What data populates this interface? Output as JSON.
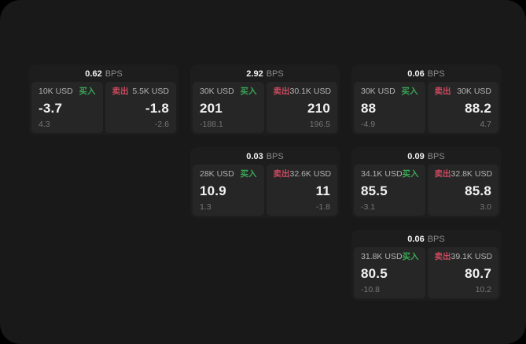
{
  "window": {
    "background": "#191919",
    "outer_background": "#000000"
  },
  "labels": {
    "buy": "买入",
    "sell": "卖出",
    "bps_unit": "BPS"
  },
  "colors": {
    "buy_green": "#3aa655",
    "sell_red": "#cb4a5e",
    "card_bg": "#1d1d1d",
    "panel_bg": "#262626",
    "primary_text": "#f2f2f2",
    "secondary_text": "#b3b3b3",
    "muted_text": "#767676"
  },
  "cards": [
    {
      "row": 1,
      "col": 1,
      "bps": "0.62",
      "buy": {
        "amount": "10K USD",
        "value": "-3.7",
        "sub": "4.3"
      },
      "sell": {
        "amount": "5.5K USD",
        "value": "-1.8",
        "sub": "-2.6"
      }
    },
    {
      "row": 1,
      "col": 2,
      "bps": "2.92",
      "buy": {
        "amount": "30K USD",
        "value": "201",
        "sub": "-188.1"
      },
      "sell": {
        "amount": "30.1K USD",
        "value": "210",
        "sub": "196.5"
      }
    },
    {
      "row": 1,
      "col": 3,
      "bps": "0.06",
      "buy": {
        "amount": "30K USD",
        "value": "88",
        "sub": "-4.9"
      },
      "sell": {
        "amount": "30K USD",
        "value": "88.2",
        "sub": "4.7"
      }
    },
    {
      "row": 2,
      "col": 2,
      "bps": "0.03",
      "buy": {
        "amount": "28K USD",
        "value": "10.9",
        "sub": "1.3"
      },
      "sell": {
        "amount": "32.6K USD",
        "value": "11",
        "sub": "-1.8"
      }
    },
    {
      "row": 2,
      "col": 3,
      "bps": "0.09",
      "buy": {
        "amount": "34.1K USD",
        "value": "85.5",
        "sub": "-3.1"
      },
      "sell": {
        "amount": "32.8K USD",
        "value": "85.8",
        "sub": "3.0"
      }
    },
    {
      "row": 3,
      "col": 3,
      "bps": "0.06",
      "buy": {
        "amount": "31.8K USD",
        "value": "80.5",
        "sub": "-10.8"
      },
      "sell": {
        "amount": "39.1K USD",
        "value": "80.7",
        "sub": "10.2"
      }
    }
  ]
}
